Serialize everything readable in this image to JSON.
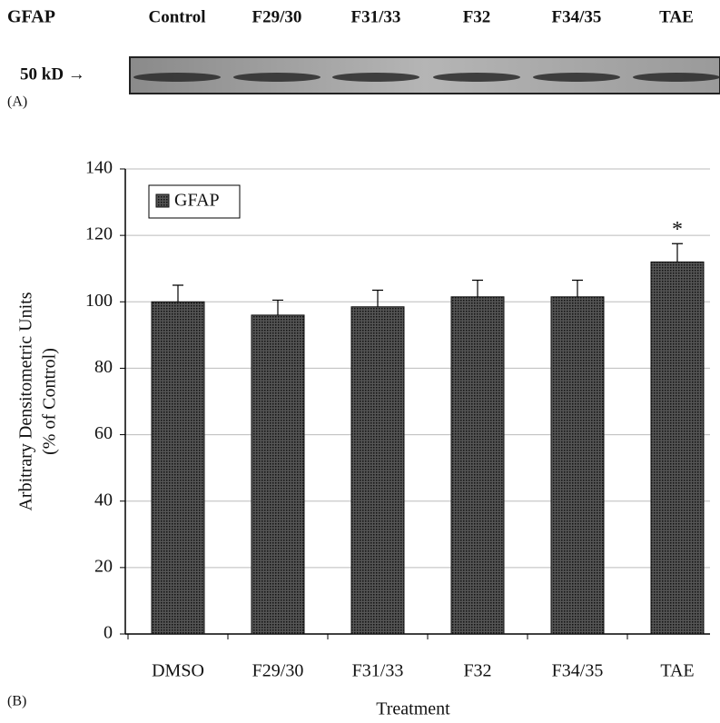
{
  "blot": {
    "label": "GFAP",
    "lanes": [
      "Control",
      "F29/30",
      "F31/33",
      "F32",
      "F34/35",
      "TAE"
    ],
    "marker": "50 kD →",
    "panel": "(A)"
  },
  "chart_data": {
    "type": "bar",
    "panel": "(B)",
    "ylabel": [
      "Arbitrary Densitometric Units",
      "(% of Control)"
    ],
    "xlabel": "Treatment",
    "categories": [
      "DMSO",
      "F29/30",
      "F31/33",
      "F32",
      "F34/35",
      "TAE"
    ],
    "series": [
      {
        "name": "GFAP",
        "color": "#3a3a3a",
        "values": [
          100,
          96,
          98.5,
          101.5,
          101.5,
          112
        ],
        "errors": [
          5,
          4.5,
          5,
          5,
          5,
          5.5
        ]
      }
    ],
    "annotations": [
      {
        "category": "TAE",
        "text": "*"
      }
    ],
    "ylim": [
      0,
      140
    ],
    "yticks": [
      0,
      20,
      40,
      60,
      80,
      100,
      120,
      140
    ],
    "grid": true,
    "legend": "top-left"
  }
}
